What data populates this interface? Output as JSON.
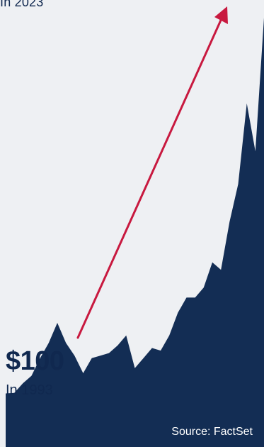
{
  "top_annotation": "In 2023",
  "start_annotation": {
    "value": "$100",
    "year": "In 1993"
  },
  "source": "Source: FactSet",
  "colors": {
    "area": "#132d54",
    "arrow": "#c8193f",
    "background": "#eef0f3"
  },
  "chart_data": {
    "type": "area",
    "title": "",
    "xlabel": "",
    "ylabel": "",
    "grid": false,
    "legend": "none",
    "series": [
      {
        "x": [
          1993,
          1994,
          1995,
          1996,
          1997,
          1998,
          1999,
          2000,
          2001,
          2002,
          2003,
          2004,
          2005,
          2006,
          2007,
          2008,
          2009,
          2010,
          2011,
          2012,
          2013,
          2014,
          2015,
          2016,
          2017,
          2018,
          2019,
          2020,
          2021,
          2022,
          2023
        ],
        "values": [
          100,
          102,
          140,
          170,
          240,
          300,
          380,
          300,
          250,
          180,
          240,
          250,
          260,
          290,
          330,
          200,
          240,
          280,
          270,
          330,
          420,
          480,
          480,
          520,
          620,
          590,
          780,
          930,
          1250,
          1060,
          1590
        ]
      }
    ]
  }
}
